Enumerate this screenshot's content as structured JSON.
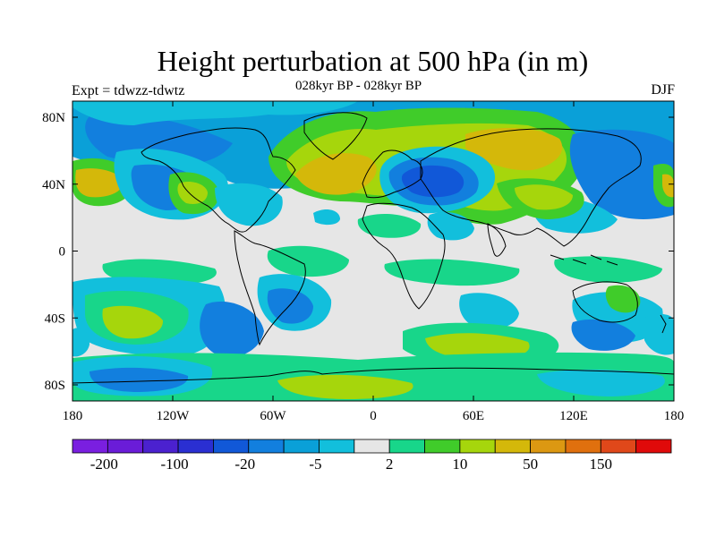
{
  "figure": {
    "title": "Height perturbation at 500 hPa (in m)",
    "subtitle": "028kyr BP - 028kyr BP",
    "left_label": "Expt = tdwzz-tdwtz",
    "right_label": "DJF"
  },
  "axes": {
    "x_ticks": [
      "180",
      "120W",
      "60W",
      "0",
      "60E",
      "120E",
      "180"
    ],
    "y_ticks": [
      "80N",
      "40N",
      "0",
      "40S",
      "80S"
    ]
  },
  "colorbar": {
    "colors": [
      "#7a1fe0",
      "#6a1cd8",
      "#4b21cf",
      "#2a2fd2",
      "#1158d8",
      "#127fde",
      "#0aa0d8",
      "#12bfdc",
      "#e6e6e6",
      "#18d68a",
      "#40cc2a",
      "#a6d60c",
      "#d4b80a",
      "#dc9812",
      "#e0700e",
      "#e0481a",
      "#e00a0a"
    ],
    "labels": [
      "-200",
      "-100",
      "-20",
      "-5",
      "2",
      "10",
      "50",
      "150"
    ]
  },
  "colors": {
    "neutral": "#e6e6e6",
    "coast": "#000000"
  }
}
